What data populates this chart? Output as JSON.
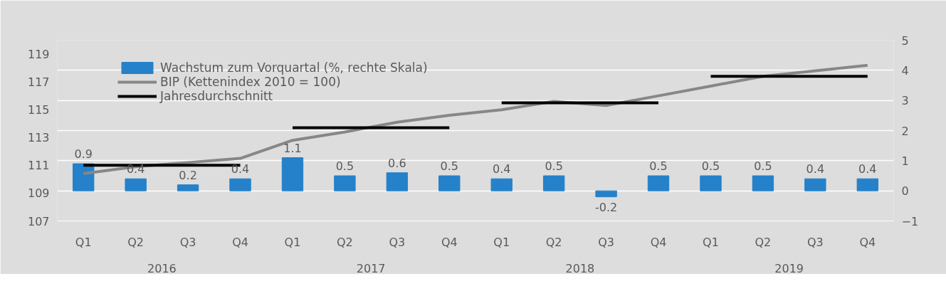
{
  "chart_data": {
    "type": "bar",
    "categories": [
      "Q1",
      "Q2",
      "Q3",
      "Q4",
      "Q1",
      "Q2",
      "Q3",
      "Q4",
      "Q1",
      "Q2",
      "Q3",
      "Q4",
      "Q1",
      "Q2",
      "Q3",
      "Q4"
    ],
    "annotations": [
      "2016",
      "2017",
      "2018",
      "2019"
    ],
    "series": [
      {
        "name": "Wachstum zum Vorquartal (%, rechte Skala)",
        "axis": "y2",
        "color": "#2581c9",
        "values": [
          0.9,
          0.4,
          0.2,
          0.4,
          1.1,
          0.5,
          0.6,
          0.5,
          0.4,
          0.5,
          -0.2,
          0.5,
          0.5,
          0.5,
          0.4,
          0.4
        ],
        "value_labels": [
          "0.9",
          "0.4",
          "0.2",
          "0.4",
          "1.1",
          "0.5",
          "0.6",
          "0.5",
          "0.4",
          "0.5",
          "-0.2",
          "0.5",
          "0.5",
          "0.5",
          "0.4",
          "0.4"
        ]
      },
      {
        "name": "BIP (Kettenindex 2010 = 100)",
        "type": "line",
        "color": "#878787",
        "values": [
          110.4,
          110.9,
          111.2,
          111.5,
          112.8,
          113.4,
          114.1,
          114.6,
          115.0,
          115.6,
          115.3,
          116.0,
          116.7,
          117.4,
          117.8,
          118.2
        ]
      },
      {
        "name": "Jahresdurchschnitt",
        "type": "line",
        "color": "#000000",
        "values": [
          111.0,
          111.0,
          111.0,
          111.0,
          null,
          null,
          null,
          null,
          null,
          null,
          null,
          null,
          null,
          null,
          null,
          null
        ]
      },
      {
        "type": "line",
        "color": "#000000",
        "values": [
          null,
          null,
          null,
          null,
          113.7,
          113.7,
          113.7,
          113.7,
          null,
          null,
          null,
          null,
          null,
          null,
          null,
          null
        ]
      },
      {
        "type": "line",
        "color": "#000000",
        "values": [
          null,
          null,
          null,
          null,
          null,
          null,
          null,
          null,
          115.5,
          115.5,
          115.5,
          115.5,
          null,
          null,
          null,
          null
        ]
      },
      {
        "type": "line",
        "color": "#000000",
        "values": [
          null,
          null,
          null,
          null,
          null,
          null,
          null,
          null,
          null,
          null,
          null,
          null,
          117.4,
          117.4,
          117.4,
          117.4
        ]
      }
    ],
    "ylim": [
      107,
      120
    ],
    "yticks": [
      107,
      109,
      111,
      113,
      115,
      117,
      119
    ],
    "y2lim": [
      -1,
      5
    ],
    "y2ticks": [
      -1,
      0,
      1,
      2,
      3,
      4,
      5
    ],
    "grid": "y2",
    "legend": "top left"
  }
}
